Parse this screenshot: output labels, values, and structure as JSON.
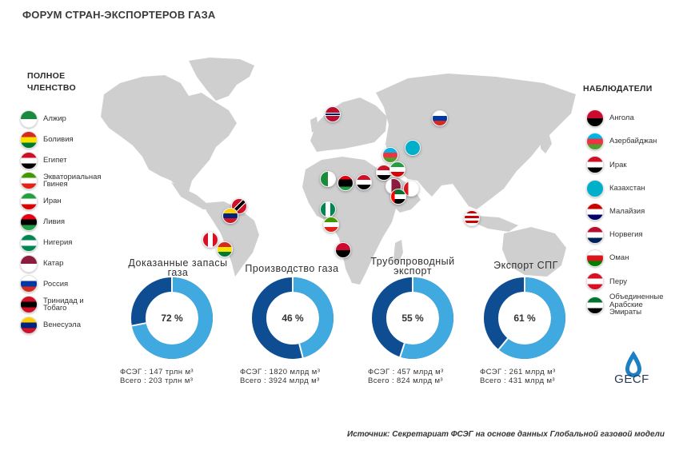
{
  "title": "ФОРУМ СТРАН-ЭКСПОРТЕРОВ ГАЗА",
  "full_membership": {
    "heading": "ПОЛНОЕ ЧЛЕНСТВО",
    "members": [
      {
        "name": "Алжир",
        "colors": [
          "#1a8a3c",
          "#ffffff"
        ]
      },
      {
        "name": "Боливия",
        "colors": [
          "#d52b1e",
          "#f9e300",
          "#007934"
        ]
      },
      {
        "name": "Египет",
        "colors": [
          "#ce1126",
          "#ffffff",
          "#000000"
        ]
      },
      {
        "name": "Экваториальная Гвинея",
        "colors": [
          "#3e9a00",
          "#ffffff",
          "#e32118"
        ]
      },
      {
        "name": "Иран",
        "colors": [
          "#239f40",
          "#ffffff",
          "#da0000"
        ]
      },
      {
        "name": "Ливия",
        "colors": [
          "#e70013",
          "#000000",
          "#239e46"
        ]
      },
      {
        "name": "Нигерия",
        "colors": [
          "#008751",
          "#ffffff",
          "#008751"
        ]
      },
      {
        "name": "Катар",
        "colors": [
          "#8d1b3d",
          "#ffffff"
        ]
      },
      {
        "name": "Россия",
        "colors": [
          "#ffffff",
          "#0039a6",
          "#d52b1e"
        ]
      },
      {
        "name": "Тринидад и Тобаго",
        "colors": [
          "#ce1126",
          "#000000",
          "#ce1126"
        ]
      },
      {
        "name": "Венесуэла",
        "colors": [
          "#ffcc00",
          "#00247d",
          "#cf142b"
        ]
      }
    ]
  },
  "observers": {
    "heading": "НАБЛЮДАТЕЛИ",
    "members": [
      {
        "name": "Ангола",
        "colors": [
          "#cc092f",
          "#000000"
        ]
      },
      {
        "name": "Азербайджан",
        "colors": [
          "#00b5e2",
          "#ef3340",
          "#509e2f"
        ]
      },
      {
        "name": "Ирак",
        "colors": [
          "#ce1126",
          "#ffffff",
          "#000000"
        ]
      },
      {
        "name": "Казахстан",
        "colors": [
          "#00afca",
          "#00afca"
        ]
      },
      {
        "name": "Малайзия",
        "colors": [
          "#cc0001",
          "#ffffff",
          "#010066"
        ]
      },
      {
        "name": "Норвегия",
        "colors": [
          "#ba0c2f",
          "#ffffff",
          "#00205b"
        ]
      },
      {
        "name": "Оман",
        "colors": [
          "#ffffff",
          "#db161b",
          "#008000"
        ]
      },
      {
        "name": "Перу",
        "colors": [
          "#d91023",
          "#ffffff",
          "#d91023"
        ]
      },
      {
        "name": "Объединенные Арабские Эмираты",
        "colors": [
          "#00732f",
          "#ffffff",
          "#000000"
        ]
      }
    ]
  },
  "chart_data": [
    {
      "type": "pie",
      "title": "Доказанные запасы газа",
      "share_percent": 72,
      "label": "72 %",
      "stat_gecf": "ФСЭГ : 147 трлн  м³",
      "stat_total": "Всего : 203 трлн  м³"
    },
    {
      "type": "pie",
      "title": "Производство газа",
      "share_percent": 46,
      "label": "46 %",
      "stat_gecf": "ФСЭГ : 1820 млрд  м³",
      "stat_total": "Всего : 3924 млрд  м³"
    },
    {
      "type": "pie",
      "title": "Трубопроводный экспорт",
      "share_percent": 55,
      "label": "55 %",
      "stat_gecf": "ФСЭГ : 457 млрд  м³",
      "stat_total": "Всего : 824 млрд  м³"
    },
    {
      "type": "pie",
      "title": "Экспорт СПГ",
      "share_percent": 61,
      "label": "61 %",
      "stat_gecf": "ФСЭГ : 261 млрд  м³",
      "stat_total": "Всего : 431 млрд  м³"
    }
  ],
  "colors": {
    "share": "#3fa9e0",
    "rest": "#0f4d92",
    "map": "#cfcfcf"
  },
  "source": "Источник: Секретариат ФСЭГ на основе данных Глобальной газовой модели",
  "logo_text": "GECF"
}
